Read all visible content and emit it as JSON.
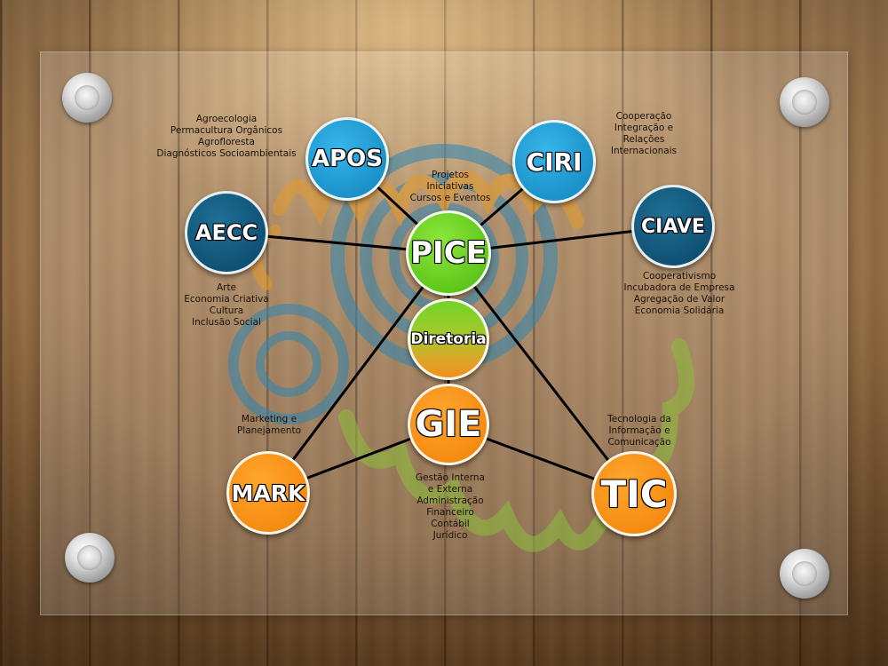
{
  "nodes": {
    "pice": "PICE",
    "diretoria": "Diretoria",
    "gie": "GIE",
    "apos": "APOS",
    "ciri": "CIRI",
    "aecc": "AECC",
    "ciave": "CIAVE",
    "mark": "MARK",
    "tic": "TIC"
  },
  "descriptions": {
    "apos": [
      "Agroecologia",
      "Permacultura Orgânicos",
      "Agrofloresta",
      "Diagnósticos Socioambientais"
    ],
    "ciri": [
      "Cooperação",
      "Integração e",
      "Relações",
      "Internacionais"
    ],
    "pice": [
      "Projetos",
      "Iniciativas",
      "Cursos e Eventos"
    ],
    "aecc": [
      "Arte",
      "Economia Criativa",
      "Cultura",
      "Inclusão Social"
    ],
    "ciave": [
      "Cooperativismo",
      "Incubadora de Empresa",
      "Agregação de Valor",
      "Economia Solidária"
    ],
    "mark": [
      "Marketing e",
      "Planejamento"
    ],
    "tic": [
      "Tecnologia da",
      "Informação e",
      "Comunicação"
    ],
    "gie": [
      "Gestão Interna",
      "e Externa",
      "Administração",
      "Financeiro",
      "Contábil",
      "Jurídico"
    ]
  },
  "colors": {
    "light_blue": "#1a9cd8",
    "dark_blue": "#125a80",
    "green": "#6ad11f",
    "orange": "#f7900f",
    "connector": "#000000"
  }
}
